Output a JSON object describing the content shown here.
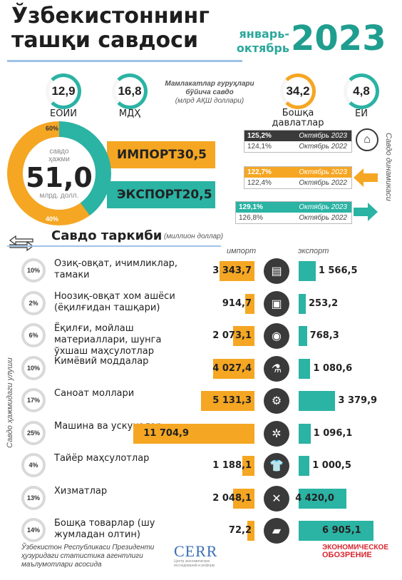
{
  "header": {
    "title_line1": "Ўзбекистоннинг",
    "title_line2": "ташқи савдоси",
    "period_line1": "январь-",
    "period_line2": "октябрь",
    "year": "2023"
  },
  "groups": {
    "note_line1": "Мамлакатлар гуруҳлари",
    "note_line2": "бўйича савдо",
    "note_line3": "(млрд АҚШ доллари)",
    "items": [
      {
        "value": "12,9",
        "label": "ЕОИИ"
      },
      {
        "value": "16,8",
        "label": "МДҲ"
      },
      {
        "value": "34,2",
        "label": "Бошқа давлатлар"
      },
      {
        "value": "4,8",
        "label": "ЕИ"
      }
    ]
  },
  "volume": {
    "caption_line1": "савдо",
    "caption_line2": "ҳажми",
    "total": "51,0",
    "unit": "млрд. долл.",
    "import_share": "60%",
    "export_share": "40%",
    "import_label": "ИМПОРТ",
    "import_value": "30,5",
    "export_label": "ЭКСПОРТ",
    "export_value": "20,5"
  },
  "dynamics": {
    "side_title": "Савдо динамикаси",
    "rows": [
      {
        "cur_value": "125,2%",
        "cur_label": "Октябрь 2023",
        "prev_value": "124,1%",
        "prev_label": "Октябрь 2022"
      },
      {
        "cur_value": "122,7%",
        "cur_label": "Октябрь 2023",
        "prev_value": "122,4%",
        "prev_label": "Октябрь 2022"
      },
      {
        "cur_value": "129,1%",
        "cur_label": "Октябрь 2023",
        "prev_value": "126,8%",
        "prev_label": "Октябрь 2022"
      }
    ]
  },
  "structure": {
    "title": "Савдо таркиби",
    "subtitle": "(миллион доллар)",
    "import_head": "импорт",
    "export_head": "экспорт",
    "side_title": "Савдо ҳажмидаги улуши",
    "rows": [
      {
        "share": "10%",
        "label": "Озиқ-овқат, ичимликлар, тамаки",
        "import": "3 343,7",
        "export": "1 566,5",
        "import_num": 3343.7,
        "export_num": 1566.5,
        "icon": "food-icon"
      },
      {
        "share": "2%",
        "label": "Ноозиқ-овқат хом ашёси (ёқилғидан ташқари)",
        "import": "914,7",
        "export": "253,2",
        "import_num": 914.7,
        "export_num": 253.2,
        "icon": "raw-material-icon"
      },
      {
        "share": "6%",
        "label": "Ёқилғи, мойлаш материаллари, шунга ўхшаш маҳсулотлар",
        "import": "2 073,1",
        "export": "768,3",
        "import_num": 2073.1,
        "export_num": 768.3,
        "icon": "fuel-icon"
      },
      {
        "share": "10%",
        "label": "Кимёвий моддалар",
        "import": "4 027,4",
        "export": "1 080,6",
        "import_num": 4027.4,
        "export_num": 1080.6,
        "icon": "flask-icon"
      },
      {
        "share": "17%",
        "label": "Саноат моллари",
        "import": "5 131,3",
        "export": "3 379,9",
        "import_num": 5131.3,
        "export_num": 3379.9,
        "icon": "industry-icon"
      },
      {
        "share": "25%",
        "label": "Машина ва ускуналар",
        "import": "11 704,9",
        "export": "1 096,1",
        "import_num": 11704.9,
        "export_num": 1096.1,
        "icon": "gears-icon"
      },
      {
        "share": "4%",
        "label": "Тайёр маҳсулотлар",
        "import": "1 188,1",
        "export": "1 000,5",
        "import_num": 1188.1,
        "export_num": 1000.5,
        "icon": "shirt-icon"
      },
      {
        "share": "13%",
        "label": "Хизматлар",
        "import": "2 048,1",
        "export": "4 420,0",
        "import_num": 2048.1,
        "export_num": 4420.0,
        "icon": "tools-icon"
      },
      {
        "share": "14%",
        "label": "Бошқа товарлар (шу жумладан олтин)",
        "import": "72,2",
        "export": "6 905,1",
        "import_num": 72.2,
        "export_num": 6905.1,
        "icon": "gold-icon"
      }
    ]
  },
  "footer": {
    "source_line1": "Ўзбекистон Республикаси Президенти",
    "source_line2": "ҳузуридаги статистика агентлиги",
    "source_line3": "маълумотлари асосида",
    "cerr": "CERR",
    "cerr_sub": "Центр экономических исследований и реформ",
    "eo_line1": "ЭКОНОМИЧЕСКОЕ",
    "eo_line2": "ОБОЗРЕНИЕ"
  },
  "colors": {
    "import": "#f5a623",
    "export": "#2bb3a4",
    "dark": "#3a3a3a"
  }
}
